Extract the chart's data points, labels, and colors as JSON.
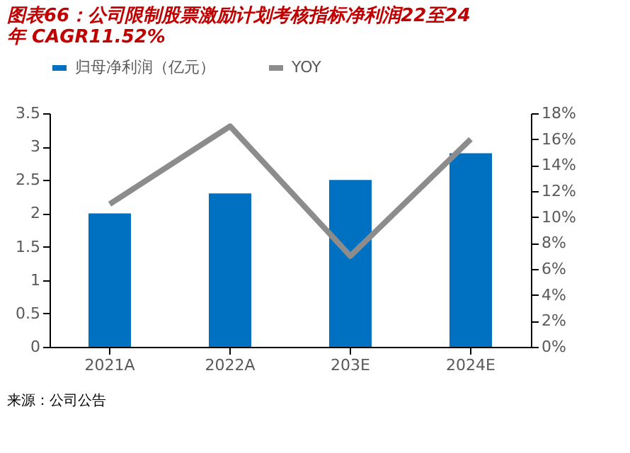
{
  "chart_data": {
    "type": "bar",
    "title": [
      "图表66：公司限制股票激励计划考核指标净利润22至24",
      "年 CAGR11.52%"
    ],
    "categories": [
      "2021A",
      "2022A",
      "203E",
      "2024E"
    ],
    "series": [
      {
        "name": "归母净利润（亿元）",
        "color": "#0070c0",
        "values": [
          2.0,
          2.3,
          2.5,
          2.9
        ]
      },
      {
        "name": "YOY",
        "type": "line",
        "axis": "y2",
        "color": "#8c8c8c",
        "values": [
          11,
          17,
          7,
          16
        ]
      }
    ],
    "ylim": [
      0,
      3.5
    ],
    "yticks": [
      0,
      0.5,
      1,
      1.5,
      2,
      2.5,
      3,
      3.5
    ],
    "y2lim": [
      0,
      18
    ],
    "y2ticks": [
      {
        "value": 0,
        "label": "0%"
      },
      {
        "value": 2,
        "label": "2%"
      },
      {
        "value": 4,
        "label": "4%"
      },
      {
        "value": 6,
        "label": "6%"
      },
      {
        "value": 8,
        "label": "8%"
      },
      {
        "value": 10,
        "label": "10%"
      },
      {
        "value": 12,
        "label": "12%"
      },
      {
        "value": 14,
        "label": "14%"
      },
      {
        "value": 16,
        "label": "16%"
      },
      {
        "value": 18,
        "label": "18%"
      }
    ],
    "legend": "top",
    "grid": false,
    "marker": "none",
    "line_style": "solid",
    "annotations": [
      "来源：公司公告"
    ]
  }
}
